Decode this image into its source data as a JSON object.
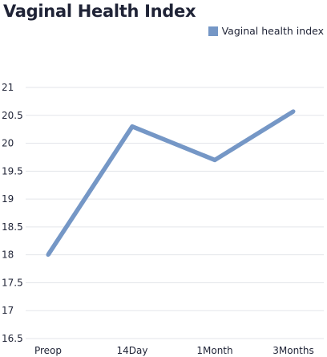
{
  "chart_data": {
    "type": "line",
    "title": "Vaginal Health Index",
    "categories": [
      "Preop",
      "14Day",
      "1Month",
      "3Months"
    ],
    "series": [
      {
        "name": "Vaginal health index",
        "values": [
          18.0,
          20.3,
          19.7,
          20.57
        ],
        "color": "#7597c6"
      }
    ],
    "ylim": [
      16.5,
      21
    ],
    "yticks": [
      "16.5",
      "17",
      "17.5",
      "18",
      "18.5",
      "19",
      "19.5",
      "20",
      "20.5",
      "21"
    ],
    "grid": true,
    "legend": "top-right",
    "xlabel": "",
    "ylabel": ""
  }
}
